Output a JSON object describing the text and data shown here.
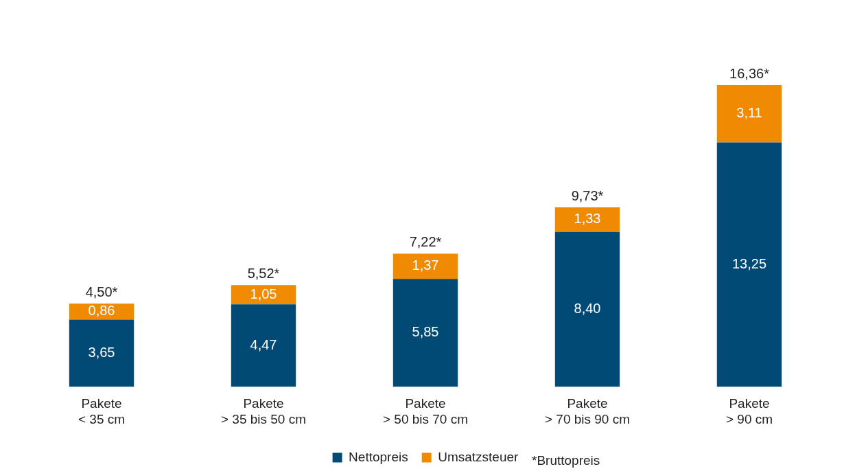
{
  "chart_data": {
    "type": "bar",
    "stacked": true,
    "categories": [
      "Pakete\n< 35 cm",
      "Pakete\n> 35 bis 50 cm",
      "Pakete\n> 50 bis 70 cm",
      "Pakete\n> 70 bis 90 cm",
      "Pakete\n> 90 cm"
    ],
    "series": [
      {
        "name": "Nettopreis",
        "color": "#004a75",
        "values": [
          3.65,
          4.47,
          5.85,
          8.4,
          13.25
        ],
        "value_labels": [
          "3,65",
          "4,47",
          "5,85",
          "8,40",
          "13,25"
        ]
      },
      {
        "name": "Umsatzsteuer",
        "color": "#f08a00",
        "values": [
          0.86,
          1.05,
          1.37,
          1.33,
          3.11
        ],
        "value_labels": [
          "0,86",
          "1,05",
          "1,37",
          "1,33",
          "3,11"
        ]
      }
    ],
    "totals": [
      "4,50*",
      "5,52*",
      "7,22*",
      "9,73*",
      "16,36*"
    ],
    "annotations": [
      "*Bruttopreis"
    ],
    "legend": "bottom",
    "grid": false,
    "tick_labels": "x"
  }
}
